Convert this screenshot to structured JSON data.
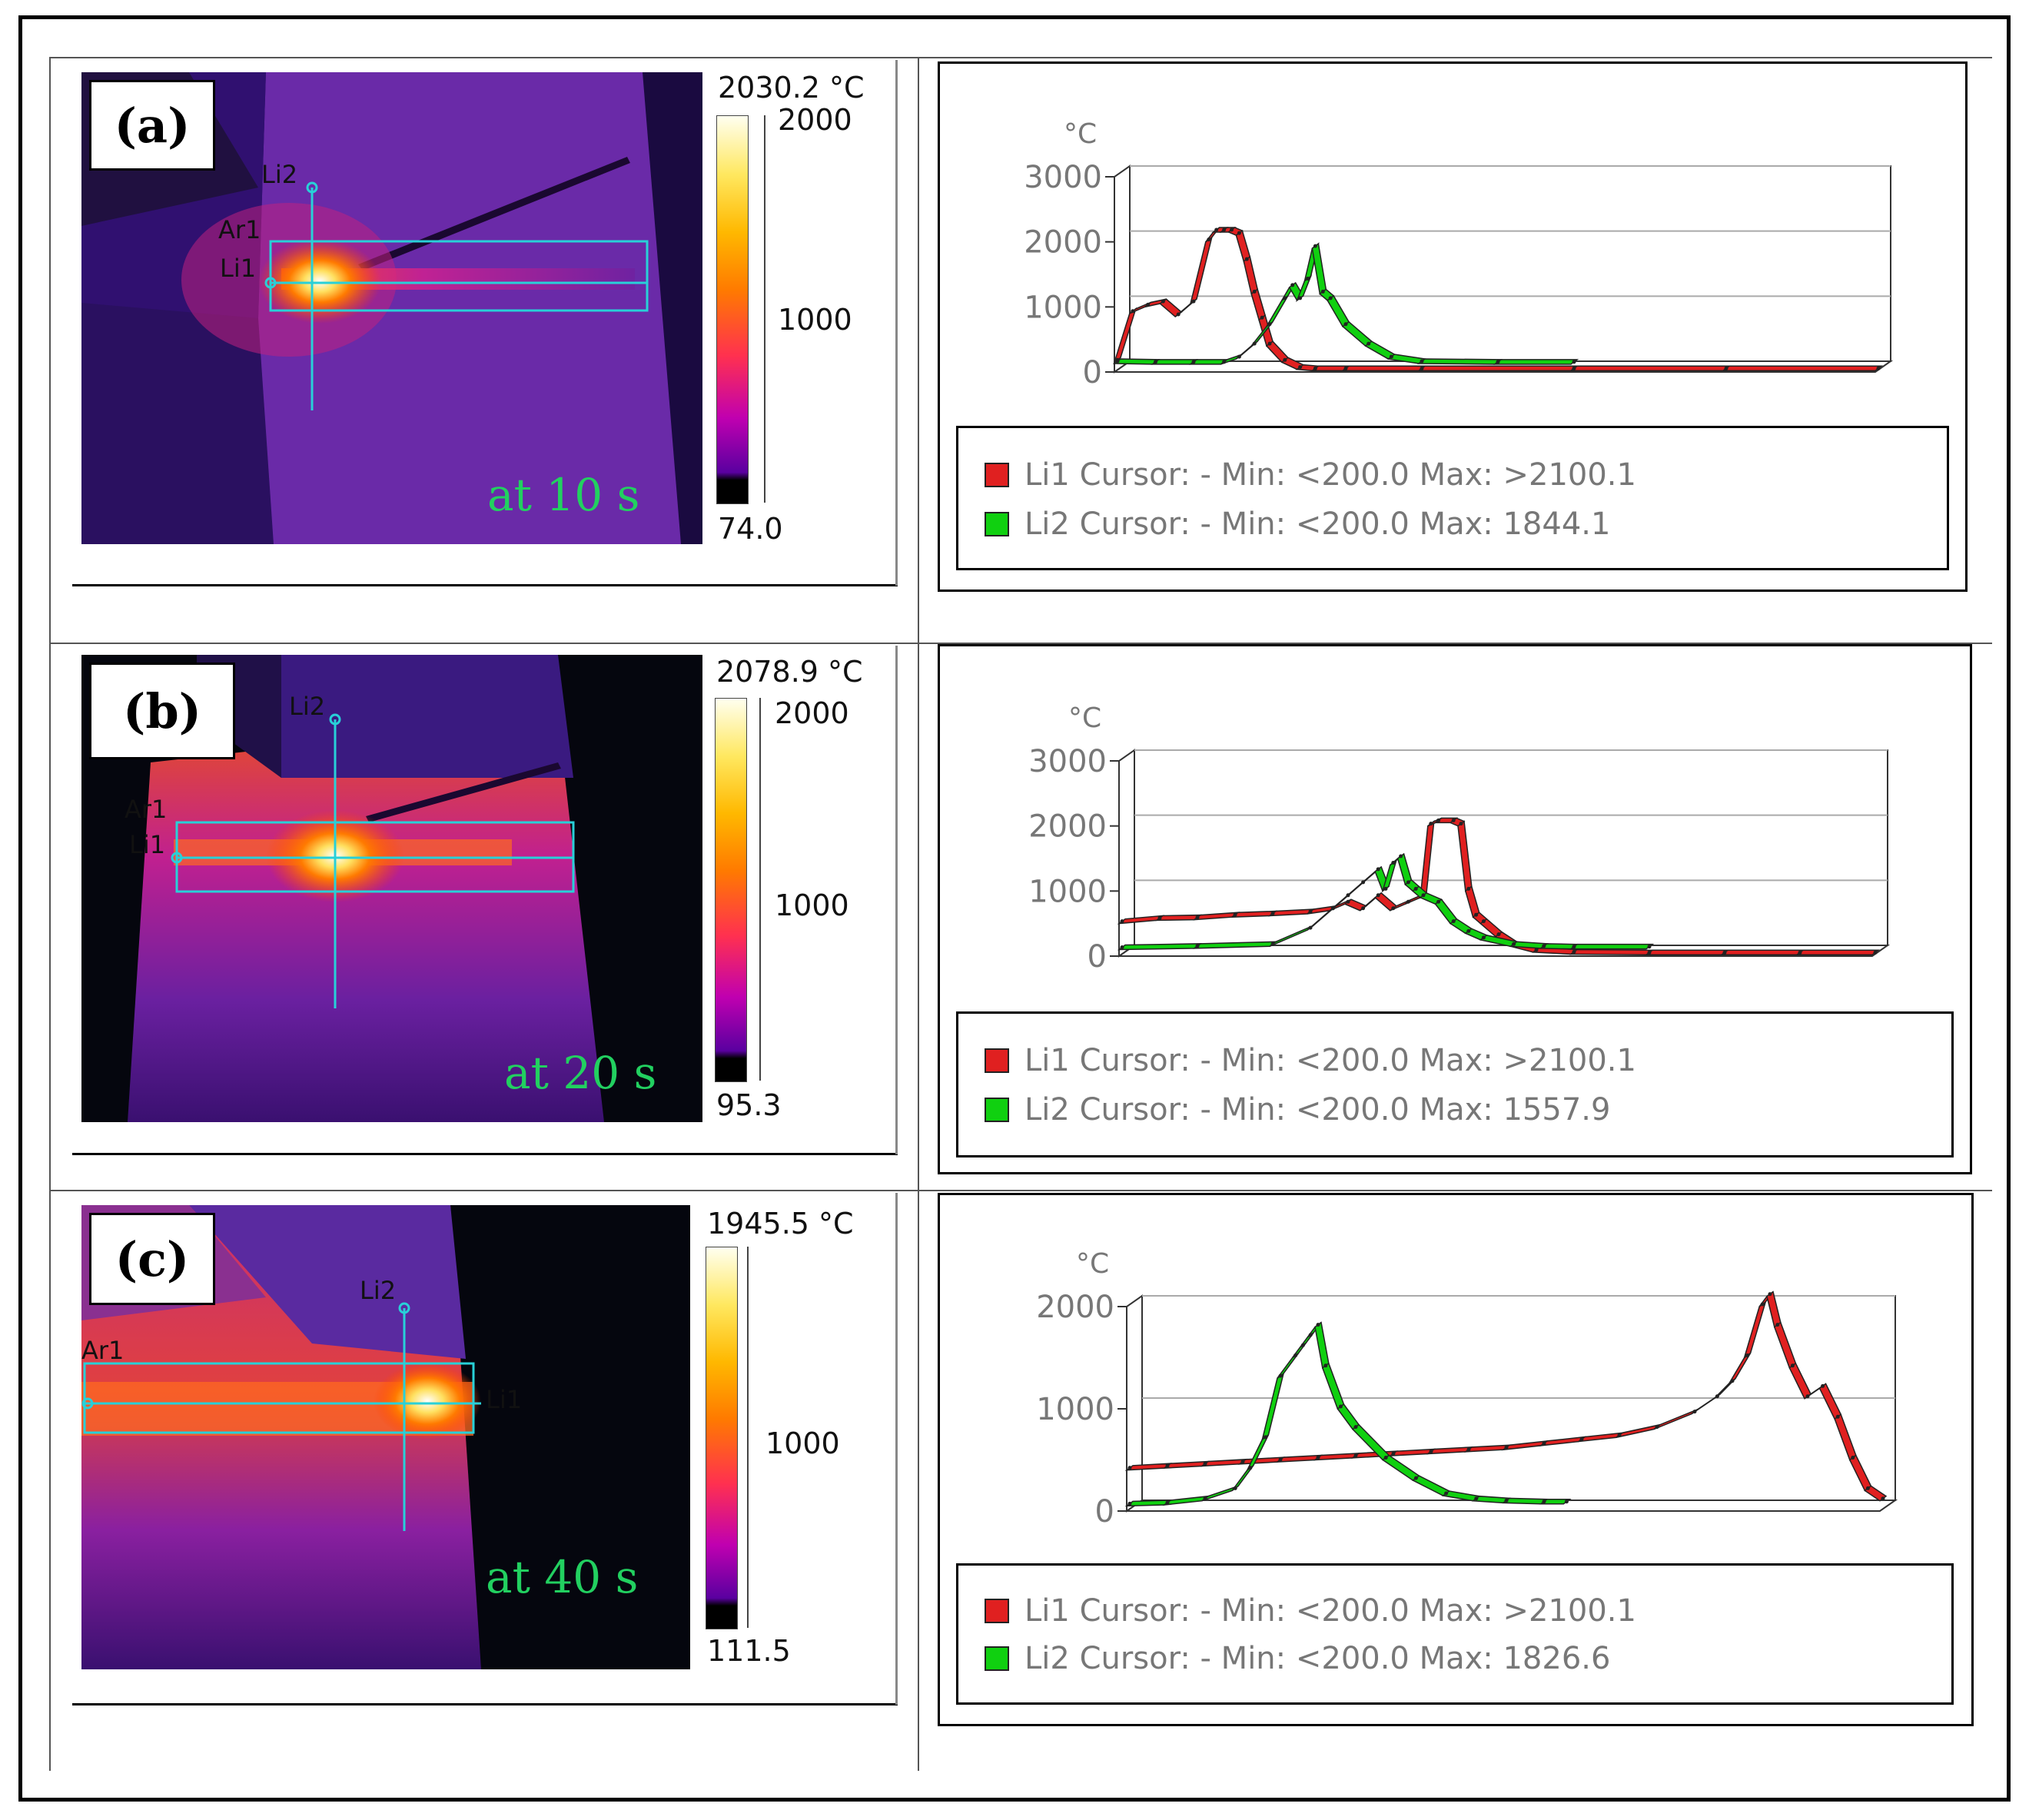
{
  "panels": [
    {
      "label": "(a)",
      "time_text": "at 10 s",
      "scale": {
        "max_text": "2030.2 °C",
        "tick_top": "2000",
        "tick_mid": "1000",
        "min_text": "74.0"
      },
      "cursors": [
        "Li2",
        "Ar1",
        "Li1"
      ],
      "legend": [
        {
          "name": "Li1",
          "text": "Li1 Cursor: - Min: <200.0 Max: >2100.1",
          "color": "#e02020"
        },
        {
          "name": "Li2",
          "text": "Li2 Cursor: - Min: <200.0 Max: 1844.1",
          "color": "#10d010"
        }
      ],
      "chart_data": {
        "type": "line",
        "unit_label": "°C",
        "yticks": [
          "3000",
          "2000",
          "1000",
          "0"
        ],
        "ylim": [
          0,
          3000
        ],
        "xlim": [
          0,
          100
        ],
        "series": [
          {
            "name": "Li1",
            "color": "#e02020",
            "x": [
              0,
              2,
              4,
              6,
              8,
              10,
              12,
              13,
              14,
              15,
              16,
              17,
              18,
              19,
              20,
              22,
              24,
              26,
              30,
              40,
              60,
              80,
              100
            ],
            "y": [
              150,
              900,
              1000,
              1050,
              850,
              1050,
              2000,
              2150,
              2150,
              2150,
              2100,
              1700,
              1200,
              800,
              400,
              150,
              40,
              20,
              20,
              20,
              20,
              20,
              20
            ]
          },
          {
            "name": "Li2",
            "color": "#10d010",
            "x": [
              0,
              5,
              10,
              14,
              16,
              18,
              20,
              22,
              23,
              24,
              25,
              26,
              27,
              28,
              30,
              33,
              36,
              40,
              50,
              60
            ],
            "y": [
              130,
              120,
              120,
              120,
              200,
              400,
              700,
              1100,
              1300,
              1100,
              1400,
              1900,
              1200,
              1100,
              700,
              400,
              200,
              130,
              120,
              120
            ]
          }
        ]
      }
    },
    {
      "label": "(b)",
      "time_text": "at 20 s",
      "scale": {
        "max_text": "2078.9 °C",
        "tick_top": "2000",
        "tick_mid": "1000",
        "min_text": "95.3"
      },
      "cursors": [
        "Li2",
        "Ar1",
        "Li1"
      ],
      "legend": [
        {
          "name": "Li1",
          "text": "Li1 Cursor: - Min: <200.0 Max: >2100.1",
          "color": "#e02020"
        },
        {
          "name": "Li2",
          "text": "Li2 Cursor: - Min: <200.0 Max: 1557.9",
          "color": "#10d010"
        }
      ],
      "chart_data": {
        "type": "line",
        "unit_label": "°C",
        "yticks": [
          "3000",
          "2000",
          "1000",
          "0"
        ],
        "ylim": [
          0,
          3000
        ],
        "xlim": [
          0,
          100
        ],
        "series": [
          {
            "name": "Li1",
            "color": "#e02020",
            "x": [
              0,
              5,
              10,
              15,
              20,
              25,
              28,
              30,
              32,
              34,
              36,
              38,
              40,
              41,
              42,
              44,
              45,
              46,
              47,
              48,
              50,
              52,
              55,
              60,
              70,
              80,
              90,
              100
            ],
            "y": [
              500,
              550,
              560,
              600,
              620,
              650,
              700,
              800,
              700,
              900,
              700,
              800,
              900,
              2000,
              2050,
              2050,
              2000,
              1000,
              600,
              500,
              300,
              150,
              60,
              30,
              20,
              20,
              20,
              20
            ]
          },
          {
            "name": "Li2",
            "color": "#10d010",
            "x": [
              0,
              10,
              20,
              25,
              28,
              30,
              32,
              34,
              35,
              36,
              37,
              38,
              39,
              40,
              42,
              44,
              46,
              48,
              52,
              56,
              60,
              70
            ],
            "y": [
              100,
              120,
              150,
              400,
              700,
              900,
              1100,
              1300,
              1000,
              1400,
              1500,
              1100,
              1000,
              900,
              800,
              500,
              350,
              250,
              150,
              120,
              110,
              110
            ]
          }
        ]
      }
    },
    {
      "label": "(c)",
      "time_text": "at 40 s",
      "scale": {
        "max_text": "1945.5 °C",
        "tick_top": "",
        "tick_mid": "1000",
        "min_text": "111.5"
      },
      "cursors": [
        "Li2",
        "Ar1",
        "Li1"
      ],
      "legend": [
        {
          "name": "Li1",
          "text": "Li1 Cursor: - Min: <200.0 Max: >2100.1",
          "color": "#e02020"
        },
        {
          "name": "Li2",
          "text": "Li2 Cursor: - Min: <200.0 Max: 1826.6",
          "color": "#10d010"
        }
      ],
      "chart_data": {
        "type": "line",
        "unit_label": "°C",
        "yticks": [
          "2000",
          "1000",
          "0"
        ],
        "ylim": [
          0,
          2000
        ],
        "xlim": [
          0,
          100
        ],
        "series": [
          {
            "name": "Li1",
            "color": "#e02020",
            "x": [
              0,
              5,
              10,
              15,
              20,
              25,
              30,
              35,
              40,
              45,
              50,
              55,
              60,
              65,
              70,
              75,
              78,
              80,
              82,
              84,
              85,
              86,
              88,
              90,
              92,
              94,
              96,
              98,
              100
            ],
            "y": [
              400,
              420,
              440,
              460,
              480,
              500,
              520,
              540,
              560,
              580,
              600,
              640,
              680,
              720,
              800,
              950,
              1100,
              1250,
              1500,
              2000,
              2100,
              1800,
              1400,
              1100,
              1200,
              900,
              500,
              200,
              100
            ]
          },
          {
            "name": "Li2",
            "color": "#10d010",
            "x": [
              0,
              5,
              10,
              14,
              16,
              18,
              20,
              22,
              23,
              24,
              25,
              26,
              28,
              30,
              34,
              38,
              42,
              46,
              50,
              55,
              58
            ],
            "y": [
              50,
              60,
              100,
              200,
              400,
              700,
              1300,
              1500,
              1600,
              1700,
              1800,
              1400,
              1000,
              800,
              500,
              300,
              150,
              100,
              80,
              70,
              70
            ]
          }
        ]
      }
    }
  ]
}
